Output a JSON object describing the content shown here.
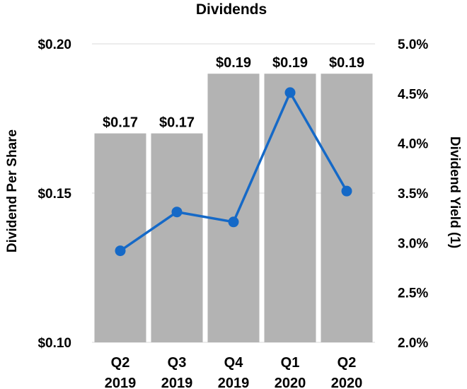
{
  "chart_data": {
    "type": "bar",
    "title": "Dividends",
    "categories": [
      [
        "Q2",
        "2019"
      ],
      [
        "Q3",
        "2019"
      ],
      [
        "Q4",
        "2019"
      ],
      [
        "Q1",
        "2020"
      ],
      [
        "Q2",
        "2020"
      ]
    ],
    "ylabel": "Dividend Per Share",
    "y2label": "Dividend Yield (1)",
    "ylim": [
      0.1,
      0.2
    ],
    "yticks": [
      0.1,
      0.15,
      0.2
    ],
    "ytick_labels": [
      "$0.10",
      "$0.15",
      "$0.20"
    ],
    "y2lim": [
      2.0,
      5.0
    ],
    "y2ticks": [
      2.0,
      2.5,
      3.0,
      3.5,
      4.0,
      4.5,
      5.0
    ],
    "y2tick_labels": [
      "2.0%",
      "2.5%",
      "3.0%",
      "3.5%",
      "4.0%",
      "4.5%",
      "5.0%"
    ],
    "series": [
      {
        "name": "Dividend Per Share",
        "type": "bar",
        "axis": "left",
        "values": [
          0.17,
          0.17,
          0.19,
          0.19,
          0.19
        ],
        "labels": [
          "$0.17",
          "$0.17",
          "$0.19",
          "$0.19",
          "$0.19"
        ],
        "color": "#b3b3b3"
      },
      {
        "name": "Dividend Yield (1)",
        "type": "line",
        "axis": "right",
        "values": [
          2.92,
          3.31,
          3.21,
          4.51,
          3.52
        ],
        "color": "#1569c7"
      }
    ]
  }
}
